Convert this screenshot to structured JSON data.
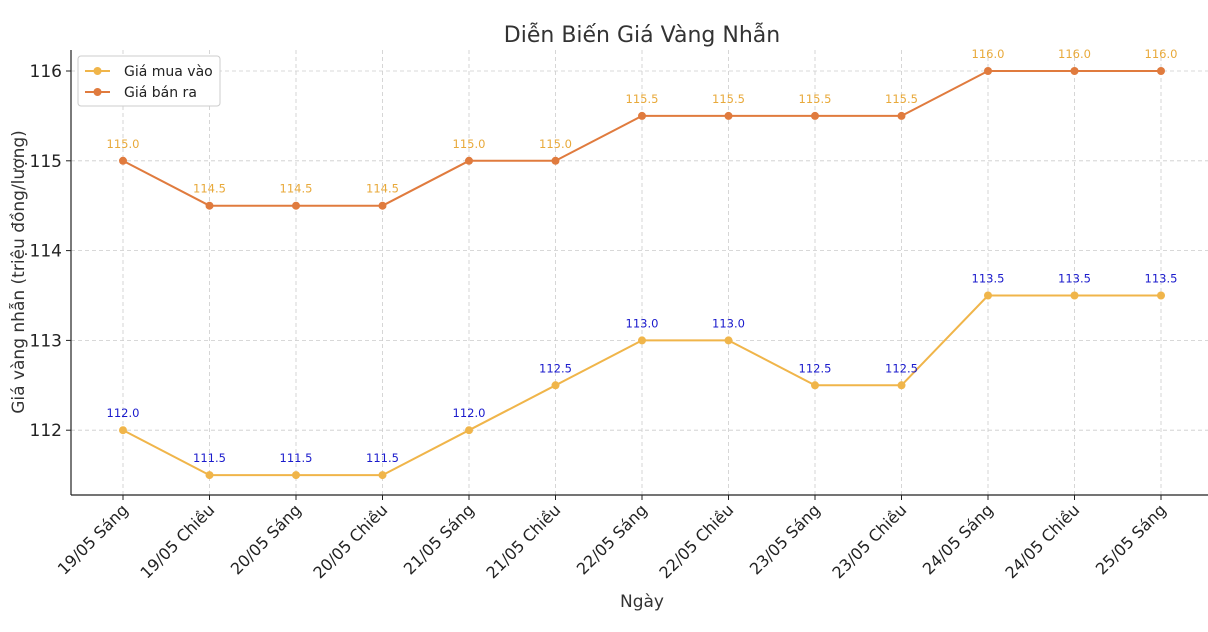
{
  "chart_data": {
    "type": "line",
    "title": "Diễn Biến Giá Vàng Nhẫn",
    "xlabel": "Ngày",
    "ylabel": "Giá vàng nhẫn (triệu đồng/lượng)",
    "categories": [
      "19/05 Sáng",
      "19/05 Chiều",
      "20/05 Sáng",
      "20/05 Chiều",
      "21/05 Sáng",
      "21/05 Chiều",
      "22/05 Sáng",
      "22/05 Chiều",
      "23/05 Sáng",
      "23/05 Chiều",
      "24/05 Sáng",
      "24/05 Chiều",
      "25/05 Sáng"
    ],
    "yticks": [
      112,
      113,
      114,
      115,
      116
    ],
    "ylim": [
      111.28,
      116.22
    ],
    "grid": true,
    "legend_position": "top-left",
    "series": [
      {
        "name": "Giá mua vào",
        "color": "#f0b54a",
        "label_color": "#1a1acc",
        "values": [
          112.0,
          111.5,
          111.5,
          111.5,
          112.0,
          112.5,
          113.0,
          113.0,
          112.5,
          112.5,
          113.5,
          113.5,
          113.5
        ],
        "labels": [
          "112.0",
          "111.5",
          "111.5",
          "111.5",
          "112.0",
          "112.5",
          "113.0",
          "113.0",
          "112.5",
          "112.5",
          "113.5",
          "113.5",
          "113.5"
        ]
      },
      {
        "name": "Giá bán ra",
        "color": "#e07b3e",
        "label_color": "#e8a93a",
        "values": [
          115.0,
          114.5,
          114.5,
          114.5,
          115.0,
          115.0,
          115.5,
          115.5,
          115.5,
          115.5,
          116.0,
          116.0,
          116.0
        ],
        "labels": [
          "115.0",
          "114.5",
          "114.5",
          "114.5",
          "115.0",
          "115.0",
          "115.5",
          "115.5",
          "115.5",
          "115.5",
          "116.0",
          "116.0",
          "116.0"
        ]
      }
    ]
  }
}
